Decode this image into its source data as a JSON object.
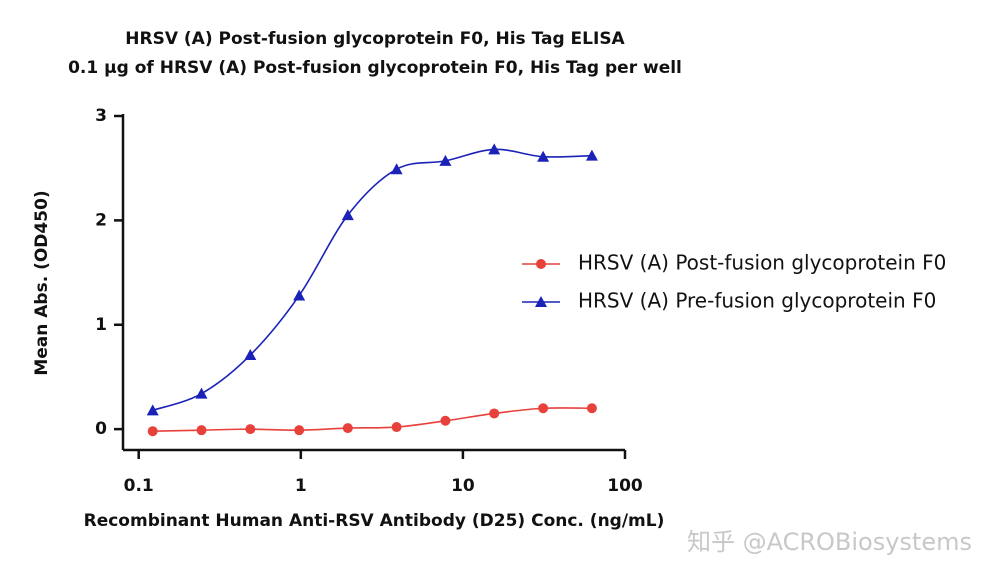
{
  "chart_data": {
    "type": "line",
    "title": "HRSV (A) Post-fusion glycoprotein F0, His Tag ELISA",
    "subtitle": "0.1 μg of HRSV (A) Post-fusion glycoprotein F0, His Tag per well",
    "x_label": "Recombinant Human Anti-RSV Antibody (D25) Conc. (ng/mL)",
    "y_label": "Mean Abs. (OD450)",
    "x": [
      0.122,
      0.244,
      0.488,
      0.977,
      1.95,
      3.9,
      7.8,
      15.6,
      31.25,
      62.5
    ],
    "series": [
      {
        "name": "HRSV (A) Post-fusion glycoprotein F0",
        "color": "#e8413c",
        "marker": "circle",
        "values": [
          -0.02,
          -0.01,
          0.0,
          -0.01,
          0.01,
          0.02,
          0.08,
          0.15,
          0.2,
          0.2
        ]
      },
      {
        "name": "HRSV (A) Pre-fusion glycoprotein F0",
        "color": "#1a22b8",
        "marker": "triangle",
        "values": [
          0.18,
          0.34,
          0.71,
          1.28,
          2.05,
          2.49,
          2.57,
          2.68,
          2.61,
          2.62
        ]
      }
    ],
    "xscale": "log",
    "xlim": [
      0.08,
      100
    ],
    "xticks": [
      0.1,
      1,
      10,
      100
    ],
    "ylim": [
      -0.2,
      3
    ],
    "yticks": [
      0,
      1,
      2,
      3
    ],
    "legend": "right",
    "watermark": "知乎 @ACROBiosystems"
  }
}
